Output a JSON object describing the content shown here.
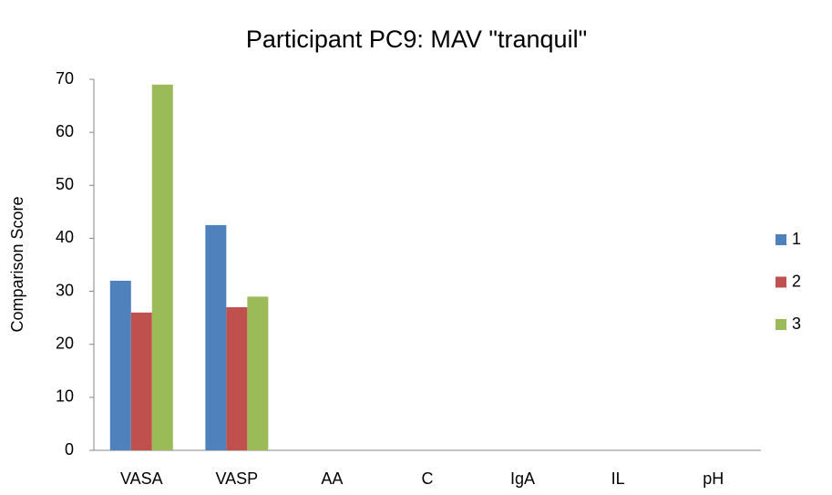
{
  "chart_data": {
    "type": "bar",
    "title": "Participant PC9: MAV \"tranquil\"",
    "ylabel": "Comparison Score",
    "categories": [
      "VASA",
      "VASP",
      "AA",
      "C",
      "IgA",
      "IL",
      "pH"
    ],
    "series": [
      {
        "name": "1",
        "color": "#4f81bd",
        "values": [
          32,
          42.5,
          0,
          0,
          0,
          0,
          0
        ]
      },
      {
        "name": "2",
        "color": "#c0504d",
        "values": [
          26,
          27,
          0,
          0,
          0,
          0,
          0
        ]
      },
      {
        "name": "3",
        "color": "#9bbb59",
        "values": [
          69,
          29,
          0,
          0,
          0,
          0,
          0
        ]
      }
    ],
    "ylim": [
      0,
      70
    ],
    "yticks": [
      0,
      10,
      20,
      30,
      40,
      50,
      60,
      70
    ],
    "grid": false,
    "legend": "right"
  }
}
